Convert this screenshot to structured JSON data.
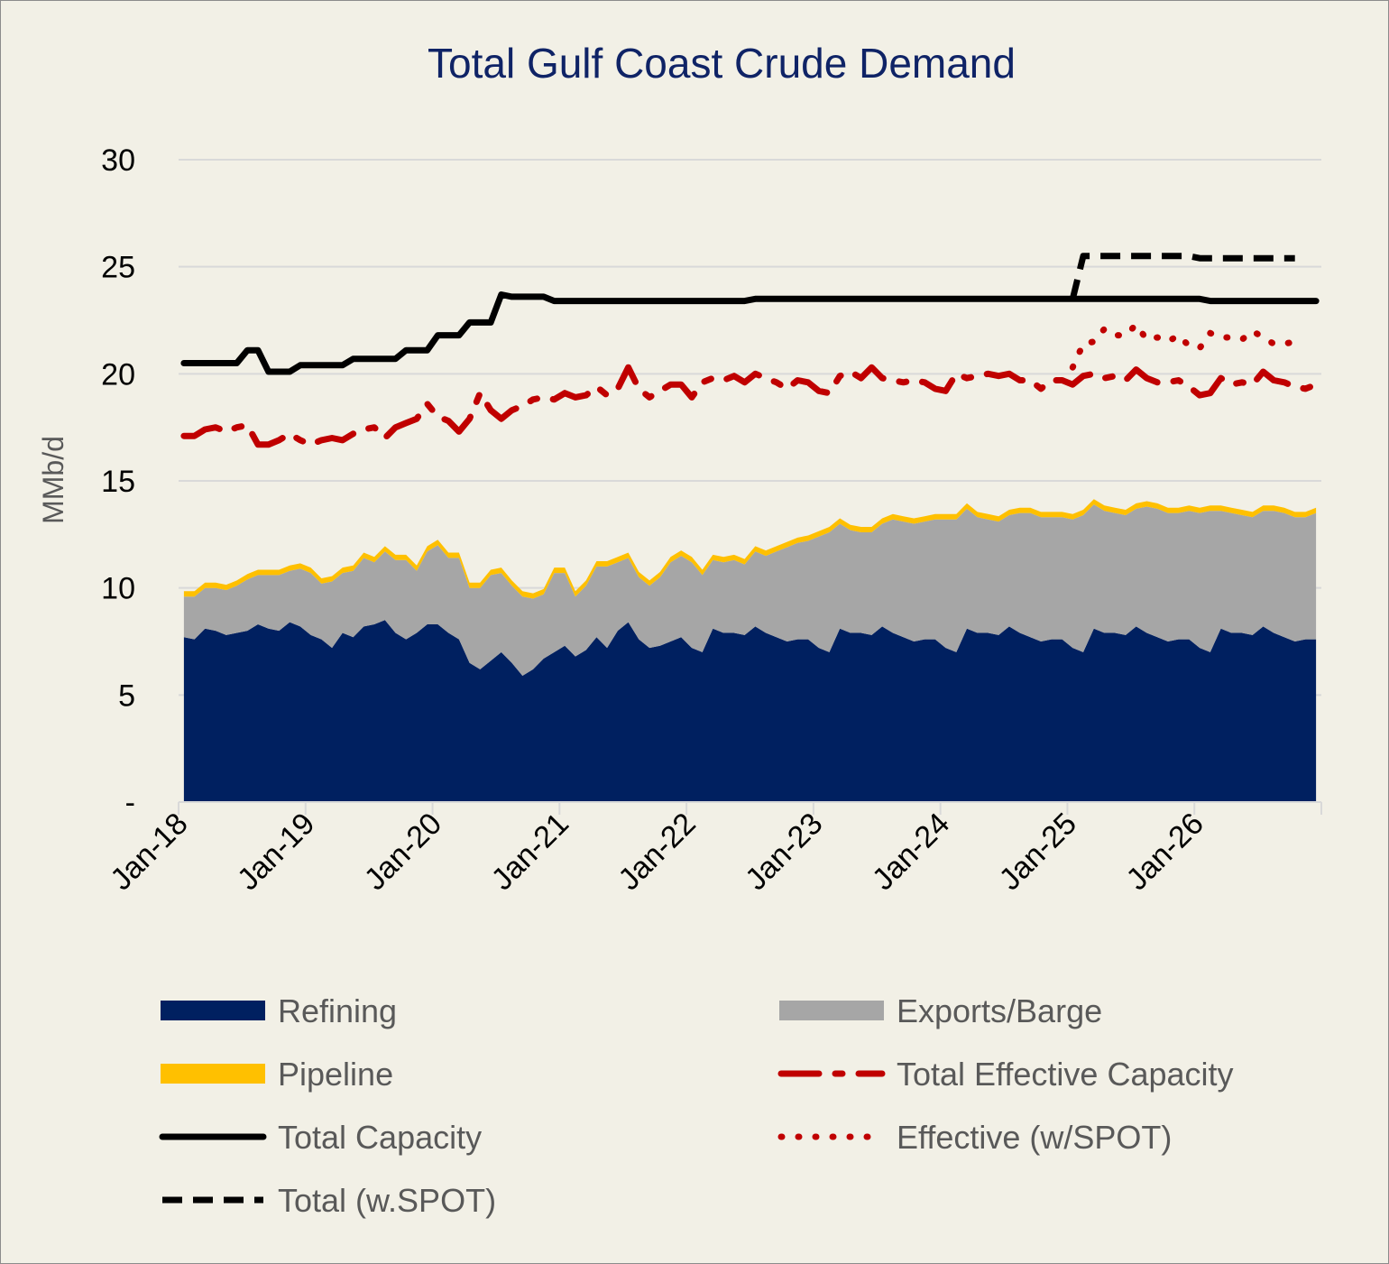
{
  "chart_data": {
    "type": "area",
    "title": "Total Gulf Coast Crude Demand",
    "xlabel": "",
    "ylabel": "MMb/d",
    "ylim": [
      0,
      30
    ],
    "y_ticks": [
      {
        "value": 0,
        "label": "-"
      },
      {
        "value": 5,
        "label": "5"
      },
      {
        "value": 10,
        "label": "10"
      },
      {
        "value": 15,
        "label": "15"
      },
      {
        "value": 20,
        "label": "20"
      },
      {
        "value": 25,
        "label": "25"
      },
      {
        "value": 30,
        "label": "30"
      }
    ],
    "x_ticks": [
      {
        "month_index": 0,
        "label": "Jan-18"
      },
      {
        "month_index": 12,
        "label": "Jan-19"
      },
      {
        "month_index": 24,
        "label": "Jan-20"
      },
      {
        "month_index": 36,
        "label": "Jan-21"
      },
      {
        "month_index": 48,
        "label": "Jan-22"
      },
      {
        "month_index": 60,
        "label": "Jan-23"
      },
      {
        "month_index": 72,
        "label": "Jan-24"
      },
      {
        "month_index": 84,
        "label": "Jan-25"
      },
      {
        "month_index": 96,
        "label": "Jan-26"
      }
    ],
    "x_range_months": [
      0,
      108
    ],
    "grid": true,
    "legend_position": "bottom",
    "series": [
      {
        "name": "Refining",
        "kind": "stacked-area",
        "color": "#002060",
        "values": [
          7.7,
          7.6,
          8.1,
          8.0,
          7.8,
          7.9,
          8.0,
          8.3,
          8.1,
          8.0,
          8.4,
          8.2,
          7.8,
          7.6,
          7.2,
          7.9,
          7.7,
          8.2,
          8.3,
          8.5,
          7.9,
          7.6,
          7.9,
          8.3,
          8.3,
          7.9,
          7.6,
          6.5,
          6.2,
          6.6,
          7.0,
          6.5,
          5.9,
          6.2,
          6.7,
          7.0,
          7.3,
          6.8,
          7.1,
          7.7,
          7.2,
          8.0,
          8.4,
          7.6,
          7.2,
          7.3,
          7.5,
          7.7,
          7.2,
          7.0,
          8.1,
          7.9,
          7.9,
          7.8,
          8.2,
          7.9,
          7.7,
          7.5,
          7.6,
          7.6,
          7.2,
          7.0,
          8.1,
          7.9,
          7.9,
          7.8,
          8.2,
          7.9,
          7.7,
          7.5,
          7.6,
          7.6,
          7.2,
          7.0,
          8.1,
          7.9,
          7.9,
          7.8,
          8.2,
          7.9,
          7.7,
          7.5,
          7.6,
          7.6,
          7.2,
          7.0,
          8.1,
          7.9,
          7.9,
          7.8,
          8.2,
          7.9,
          7.7,
          7.5,
          7.6,
          7.6,
          7.2,
          7.0,
          8.1,
          7.9,
          7.9,
          7.8,
          8.2,
          7.9,
          7.7,
          7.5,
          7.6,
          7.6
        ]
      },
      {
        "name": "Exports/Barge",
        "kind": "stacked-area",
        "color": "#a6a6a6",
        "values": [
          1.9,
          2.0,
          1.9,
          2.0,
          2.1,
          2.2,
          2.4,
          2.3,
          2.5,
          2.6,
          2.4,
          2.7,
          2.9,
          2.6,
          3.1,
          2.8,
          3.1,
          3.2,
          2.9,
          3.2,
          3.4,
          3.7,
          2.9,
          3.4,
          3.7,
          3.5,
          3.8,
          3.5,
          3.8,
          4.0,
          3.7,
          3.6,
          3.7,
          3.3,
          3.0,
          3.7,
          3.4,
          2.8,
          3.0,
          3.3,
          3.8,
          3.2,
          3.0,
          2.9,
          2.9,
          3.2,
          3.7,
          3.8,
          4.0,
          3.6,
          3.2,
          3.3,
          3.4,
          3.3,
          3.5,
          3.6,
          4.0,
          4.4,
          4.5,
          4.6,
          5.2,
          5.6,
          4.9,
          4.8,
          4.7,
          4.8,
          4.8,
          5.3,
          5.4,
          5.5,
          5.5,
          5.6,
          6.0,
          6.2,
          5.6,
          5.4,
          5.3,
          5.3,
          5.2,
          5.6,
          5.8,
          5.8,
          5.7,
          5.7,
          6.0,
          6.4,
          5.8,
          5.7,
          5.6,
          5.6,
          5.5,
          5.9,
          6.0,
          6.0,
          5.9,
          6.0,
          6.3,
          6.6,
          5.5,
          5.6,
          5.5,
          5.5,
          5.4,
          5.7,
          5.8,
          5.8,
          5.7,
          5.9
        ]
      },
      {
        "name": "Pipeline",
        "kind": "stacked-area",
        "color": "#ffc000",
        "values": [
          0.25,
          0.25,
          0.25,
          0.25,
          0.25,
          0.25,
          0.25,
          0.25,
          0.25,
          0.25,
          0.25,
          0.25,
          0.25,
          0.25,
          0.25,
          0.25,
          0.25,
          0.25,
          0.25,
          0.25,
          0.25,
          0.25,
          0.25,
          0.25,
          0.25,
          0.25,
          0.25,
          0.25,
          0.25,
          0.25,
          0.25,
          0.25,
          0.25,
          0.25,
          0.25,
          0.25,
          0.25,
          0.25,
          0.25,
          0.25,
          0.25,
          0.25,
          0.25,
          0.25,
          0.25,
          0.25,
          0.25,
          0.25,
          0.25,
          0.25,
          0.25,
          0.25,
          0.25,
          0.25,
          0.25,
          0.25,
          0.25,
          0.25,
          0.25,
          0.25,
          0.25,
          0.25,
          0.25,
          0.25,
          0.25,
          0.25,
          0.25,
          0.25,
          0.25,
          0.25,
          0.25,
          0.25,
          0.25,
          0.25,
          0.25,
          0.25,
          0.25,
          0.25,
          0.25,
          0.25,
          0.25,
          0.25,
          0.25,
          0.25,
          0.25,
          0.25,
          0.25,
          0.25,
          0.25,
          0.25,
          0.25,
          0.25,
          0.25,
          0.25,
          0.25,
          0.25,
          0.25,
          0.25,
          0.25,
          0.25,
          0.25,
          0.25,
          0.25,
          0.25,
          0.25,
          0.25,
          0.25,
          0.25
        ]
      },
      {
        "name": "Total Effective Capacity",
        "kind": "line",
        "style": "dash-dot",
        "color": "#c00000",
        "values": [
          17.1,
          17.1,
          17.4,
          17.5,
          17.3,
          17.5,
          17.6,
          16.7,
          16.7,
          16.9,
          17.2,
          16.9,
          16.7,
          16.9,
          17.0,
          16.9,
          17.2,
          17.4,
          17.5,
          17.0,
          17.5,
          17.7,
          17.9,
          18.6,
          18.0,
          17.8,
          17.3,
          17.9,
          19.1,
          18.3,
          17.9,
          18.3,
          18.5,
          18.8,
          18.9,
          18.8,
          19.1,
          18.9,
          19.0,
          19.4,
          19.0,
          19.3,
          20.3,
          19.3,
          18.9,
          19.2,
          19.5,
          19.5,
          18.9,
          19.6,
          19.8,
          19.7,
          19.9,
          19.6,
          20.0,
          19.8,
          19.6,
          19.3,
          19.7,
          19.6,
          19.2,
          19.1,
          19.9,
          20.1,
          19.8,
          20.3,
          19.8,
          19.7,
          19.6,
          19.7,
          19.6,
          19.3,
          19.2,
          20.0,
          19.8,
          19.9,
          20.0,
          19.9,
          20.0,
          19.7,
          19.7,
          19.3,
          19.7,
          19.7,
          19.5,
          19.9,
          20.0,
          19.8,
          19.9,
          19.7,
          20.2,
          19.8,
          19.6,
          19.6,
          19.7,
          19.4,
          19.0,
          19.1,
          19.8,
          19.5,
          19.6,
          19.5,
          20.1,
          19.7,
          19.6,
          19.4,
          19.3,
          19.5
        ]
      },
      {
        "name": "Total Capacity",
        "kind": "line",
        "style": "solid",
        "color": "#000000",
        "values": [
          20.5,
          20.5,
          20.5,
          20.5,
          20.5,
          20.5,
          21.1,
          21.1,
          20.1,
          20.1,
          20.1,
          20.4,
          20.4,
          20.4,
          20.4,
          20.4,
          20.7,
          20.7,
          20.7,
          20.7,
          20.7,
          21.1,
          21.1,
          21.1,
          21.8,
          21.8,
          21.8,
          22.4,
          22.4,
          22.4,
          23.7,
          23.6,
          23.6,
          23.6,
          23.6,
          23.4,
          23.4,
          23.4,
          23.4,
          23.4,
          23.4,
          23.4,
          23.4,
          23.4,
          23.4,
          23.4,
          23.4,
          23.4,
          23.4,
          23.4,
          23.4,
          23.4,
          23.4,
          23.4,
          23.5,
          23.5,
          23.5,
          23.5,
          23.5,
          23.5,
          23.5,
          23.5,
          23.5,
          23.5,
          23.5,
          23.5,
          23.5,
          23.5,
          23.5,
          23.5,
          23.5,
          23.5,
          23.5,
          23.5,
          23.5,
          23.5,
          23.5,
          23.5,
          23.5,
          23.5,
          23.5,
          23.5,
          23.5,
          23.5,
          23.5,
          23.5,
          23.5,
          23.5,
          23.5,
          23.5,
          23.5,
          23.5,
          23.5,
          23.5,
          23.5,
          23.5,
          23.5,
          23.4,
          23.4,
          23.4,
          23.4,
          23.4,
          23.4,
          23.4,
          23.4,
          23.4,
          23.4,
          23.4
        ]
      },
      {
        "name": "Effective (w/SPOT)",
        "kind": "line",
        "style": "dotted",
        "color": "#c00000",
        "start_month": 84,
        "values": [
          20.3,
          21.4,
          21.5,
          22.1,
          21.8,
          21.8,
          22.3,
          21.6,
          21.7,
          21.5,
          21.8,
          21.3,
          21.2,
          21.9,
          21.7,
          21.7,
          21.6,
          22.0,
          21.7,
          21.4,
          21.4,
          21.5
        ]
      },
      {
        "name": "Total (w.SPOT)",
        "kind": "line",
        "style": "dashed",
        "color": "#000000",
        "start_month": 84,
        "values": [
          23.5,
          25.5,
          25.5,
          25.5,
          25.5,
          25.5,
          25.5,
          25.5,
          25.5,
          25.5,
          25.5,
          25.5,
          25.4,
          25.4,
          25.4,
          25.4,
          25.4,
          25.4,
          25.4,
          25.4,
          25.4,
          25.4
        ]
      }
    ]
  }
}
